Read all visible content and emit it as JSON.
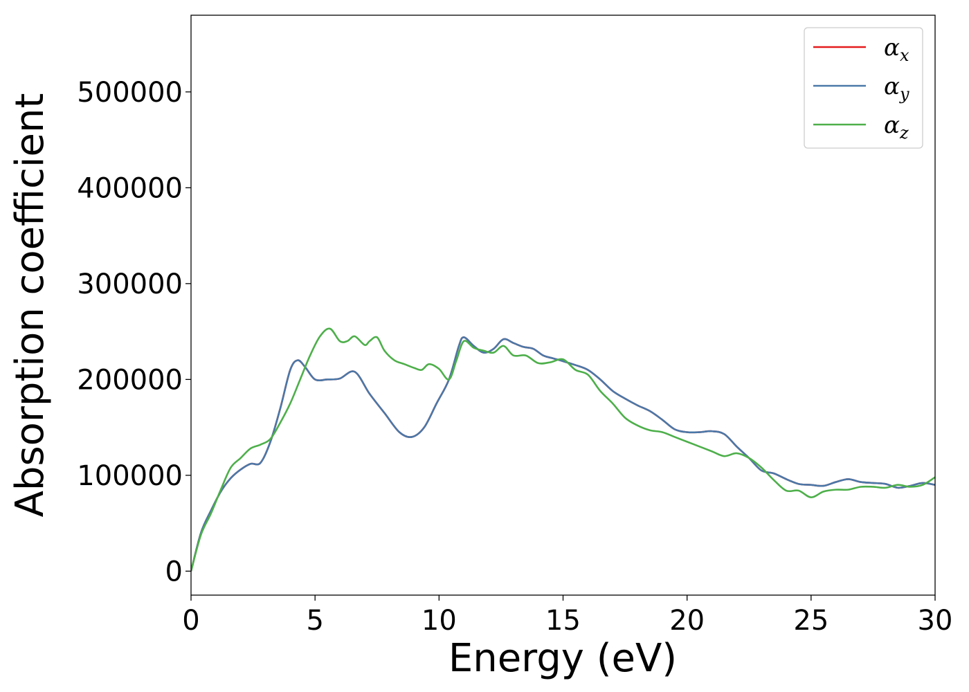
{
  "chart_data": {
    "type": "line",
    "title": "",
    "xlabel": "Energy (eV)",
    "ylabel": "Absorption coefficient",
    "xlim": [
      0,
      30
    ],
    "ylim": [
      -25000,
      580000
    ],
    "xticks": [
      0,
      5,
      10,
      15,
      20,
      25,
      30
    ],
    "yticks": [
      0,
      100000,
      200000,
      300000,
      400000,
      500000
    ],
    "grid": false,
    "legend_position": "top-right",
    "series": [
      {
        "name": "αx",
        "symbol": "α",
        "subscript": "x",
        "color": "#e41a1c",
        "x": [
          0,
          0.4,
          0.8,
          1.2,
          1.6,
          2.0,
          2.4,
          2.8,
          3.2,
          3.6,
          4.0,
          4.3,
          4.6,
          5.0,
          5.5,
          6.0,
          6.6,
          7.2,
          7.8,
          8.4,
          8.9,
          9.4,
          9.9,
          10.4,
          10.8,
          11.0,
          11.4,
          11.8,
          12.2,
          12.6,
          13.0,
          13.4,
          13.8,
          14.2,
          14.6,
          15.0,
          15.5,
          16.0,
          16.5,
          17.0,
          17.5,
          18.0,
          18.5,
          19.0,
          19.5,
          20.0,
          20.5,
          21.0,
          21.5,
          22.0,
          22.5,
          23.0,
          23.5,
          24.0,
          24.5,
          25.0,
          25.5,
          26.0,
          26.5,
          27.0,
          27.5,
          28.0,
          28.5,
          29.0,
          29.5,
          30.0
        ],
        "y": [
          0,
          40000,
          63000,
          83000,
          97000,
          106000,
          112000,
          113000,
          135000,
          170000,
          210000,
          220000,
          213000,
          200000,
          200000,
          201000,
          208000,
          185000,
          165000,
          145000,
          140000,
          150000,
          175000,
          200000,
          235000,
          244000,
          235000,
          228000,
          232000,
          242000,
          238000,
          234000,
          232000,
          225000,
          222000,
          219000,
          215000,
          210000,
          200000,
          188000,
          180000,
          173000,
          167000,
          158000,
          148000,
          145000,
          145000,
          146000,
          143000,
          130000,
          118000,
          105000,
          102000,
          96000,
          91000,
          90000,
          89000,
          93000,
          96000,
          93000,
          92000,
          91000,
          87000,
          89000,
          92000,
          90000
        ]
      },
      {
        "name": "αy",
        "symbol": "α",
        "subscript": "y",
        "color": "#4a78a8",
        "x": [
          0,
          0.4,
          0.8,
          1.2,
          1.6,
          2.0,
          2.4,
          2.8,
          3.2,
          3.6,
          4.0,
          4.3,
          4.6,
          5.0,
          5.5,
          6.0,
          6.6,
          7.2,
          7.8,
          8.4,
          8.9,
          9.4,
          9.9,
          10.4,
          10.8,
          11.0,
          11.4,
          11.8,
          12.2,
          12.6,
          13.0,
          13.4,
          13.8,
          14.2,
          14.6,
          15.0,
          15.5,
          16.0,
          16.5,
          17.0,
          17.5,
          18.0,
          18.5,
          19.0,
          19.5,
          20.0,
          20.5,
          21.0,
          21.5,
          22.0,
          22.5,
          23.0,
          23.5,
          24.0,
          24.5,
          25.0,
          25.5,
          26.0,
          26.5,
          27.0,
          27.5,
          28.0,
          28.5,
          29.0,
          29.5,
          30.0
        ],
        "y": [
          0,
          40000,
          63000,
          83000,
          97000,
          106000,
          112000,
          113000,
          135000,
          170000,
          210000,
          220000,
          213000,
          200000,
          200000,
          201000,
          208000,
          185000,
          165000,
          145000,
          140000,
          150000,
          175000,
          200000,
          235000,
          244000,
          235000,
          228000,
          232000,
          242000,
          238000,
          234000,
          232000,
          225000,
          222000,
          219000,
          215000,
          210000,
          200000,
          188000,
          180000,
          173000,
          167000,
          158000,
          148000,
          145000,
          145000,
          146000,
          143000,
          130000,
          118000,
          105000,
          102000,
          96000,
          91000,
          90000,
          89000,
          93000,
          96000,
          93000,
          92000,
          91000,
          87000,
          89000,
          92000,
          90000
        ]
      },
      {
        "name": "αz",
        "symbol": "α",
        "subscript": "z",
        "color": "#4daf4a",
        "x": [
          0,
          0.4,
          0.8,
          1.2,
          1.6,
          2.0,
          2.4,
          2.8,
          3.2,
          3.6,
          4.0,
          4.4,
          4.8,
          5.2,
          5.6,
          6.0,
          6.3,
          6.6,
          7.0,
          7.2,
          7.5,
          7.8,
          8.2,
          8.6,
          9.0,
          9.3,
          9.6,
          10.0,
          10.4,
          10.7,
          11.0,
          11.4,
          11.8,
          12.2,
          12.6,
          13.0,
          13.5,
          14.0,
          14.5,
          15.0,
          15.5,
          16.0,
          16.5,
          17.0,
          17.5,
          18.0,
          18.5,
          19.0,
          19.5,
          20.0,
          20.5,
          21.0,
          21.5,
          22.0,
          22.5,
          23.0,
          23.5,
          24.0,
          24.5,
          25.0,
          25.5,
          26.0,
          26.5,
          27.0,
          27.5,
          28.0,
          28.5,
          29.0,
          29.5,
          30.0
        ],
        "y": [
          0,
          38000,
          60000,
          85000,
          108000,
          118000,
          128000,
          132000,
          138000,
          155000,
          175000,
          200000,
          225000,
          245000,
          253000,
          240000,
          240000,
          245000,
          236000,
          240000,
          244000,
          230000,
          220000,
          216000,
          212000,
          210000,
          216000,
          211000,
          200000,
          220000,
          240000,
          233000,
          230000,
          228000,
          235000,
          225000,
          225000,
          217000,
          218000,
          221000,
          210000,
          205000,
          188000,
          175000,
          160000,
          152000,
          147000,
          145000,
          140000,
          135000,
          130000,
          125000,
          120000,
          123000,
          118000,
          108000,
          95000,
          84000,
          84000,
          77000,
          83000,
          85000,
          85000,
          88000,
          88000,
          87000,
          90000,
          88000,
          90000,
          98000
        ]
      }
    ]
  }
}
